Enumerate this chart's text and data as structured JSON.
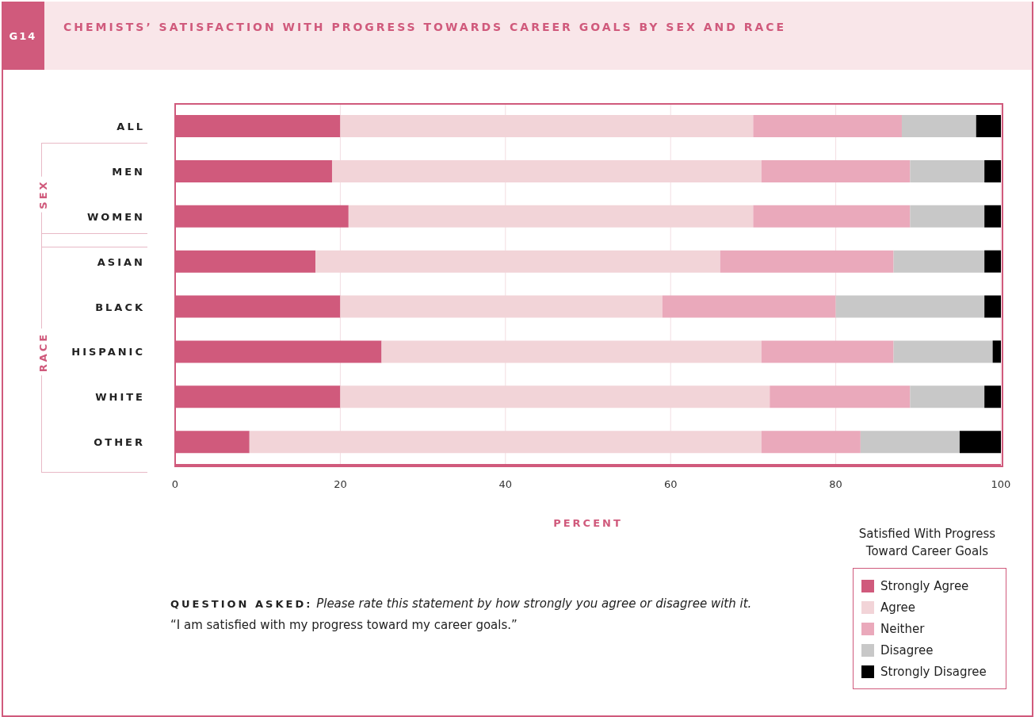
{
  "chart_data": {
    "type": "bar",
    "orientation": "horizontal",
    "stacked": true,
    "title": "CHEMISTS’ SATISFACTION WITH PROGRESS TOWARDS CAREER GOALS BY SEX AND RACE",
    "xlabel": "PERCENT",
    "legend_title": "Satisfied With Progress Toward Career Goals",
    "categories": [
      "ALL",
      "MEN",
      "WOMEN",
      "ASIAN",
      "BLACK",
      "HISPANIC",
      "WHITE",
      "OTHER"
    ],
    "series": [
      {
        "name": "Strongly Agree",
        "color": "#d05a7c",
        "values": [
          20,
          19,
          21,
          17,
          20,
          25,
          20,
          9
        ]
      },
      {
        "name": "Agree",
        "color": "#f2d4d8",
        "values": [
          50,
          52,
          49,
          49,
          39,
          46,
          52,
          62
        ]
      },
      {
        "name": "Neither",
        "color": "#eaa9bb",
        "values": [
          18,
          18,
          19,
          21,
          21,
          16,
          17,
          12
        ]
      },
      {
        "name": "Disagree",
        "color": "#c8c8c8",
        "values": [
          9,
          9,
          9,
          11,
          18,
          12,
          9,
          12
        ]
      },
      {
        "name": "Strongly Disagree",
        "color": "#000000",
        "values": [
          3,
          2,
          2,
          2,
          2,
          1,
          2,
          5
        ]
      }
    ],
    "xlim": [
      0,
      100
    ],
    "xticks": [
      0,
      20,
      40,
      60,
      80,
      100
    ],
    "grid": "x",
    "legend": "bottom right",
    "annotations": [
      "G14",
      "SEX",
      "RACE",
      "QUESTION ASKED:",
      "Please rate this statement by how strongly you agree or disagree with it.",
      "“I am satisfied with my progress toward my career goals.”"
    ]
  }
}
